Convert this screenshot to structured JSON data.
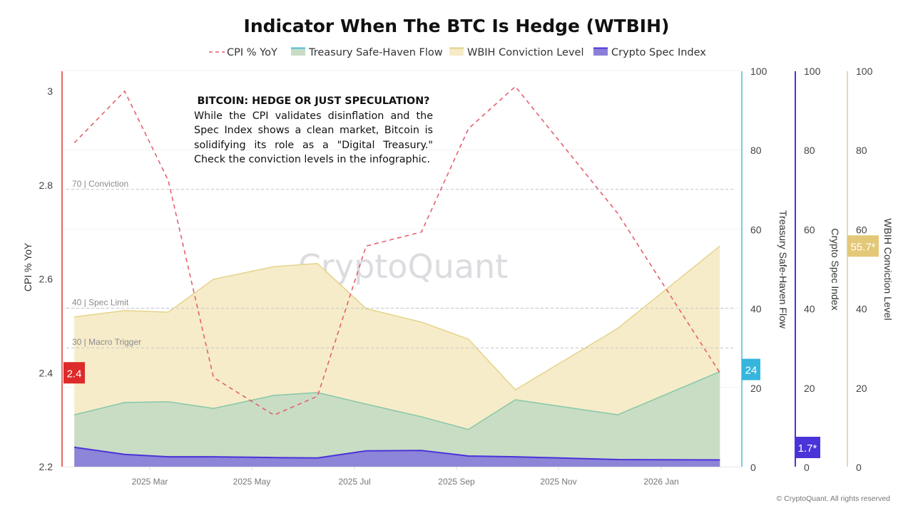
{
  "chart_data": {
    "type": "area",
    "title": "Indicator When The BTC Is Hedge (WTBIH)",
    "x": [
      "2025-01-15",
      "2025-02-14",
      "2025-03-12",
      "2025-04-08",
      "2025-05-14",
      "2025-06-09",
      "2025-07-08",
      "2025-08-10",
      "2025-09-07",
      "2025-10-05",
      "2025-12-05",
      "2026-02-04"
    ],
    "x_tick_labels": [
      "2025 Mar",
      "2025 May",
      "2025 Jul",
      "2025 Sep",
      "2025 Nov",
      "2026 Jan"
    ],
    "series": [
      {
        "name": "CPI % YoY",
        "style": "dashed-line",
        "axis": "left",
        "color": "#e4606f",
        "values": [
          2.89,
          3.0,
          2.81,
          2.39,
          2.31,
          2.35,
          2.67,
          2.7,
          2.92,
          3.01,
          2.74,
          2.4
        ],
        "last_label": "2.4",
        "label_color": "#dd2a2a"
      },
      {
        "name": "Treasury Safe-Haven Flow",
        "style": "area",
        "axis": "right1",
        "color": "#4bbcd8",
        "fill": "#c6dcc4",
        "stroke": "#86c7a8",
        "values": [
          13.1,
          16.2,
          16.4,
          14.7,
          18.0,
          18.7,
          15.8,
          12.6,
          9.4,
          16.9,
          13.1,
          24
        ],
        "last_label": "24"
      },
      {
        "name": "WBIH Conviction Level",
        "style": "area",
        "axis": "right3",
        "color": "#e3cf87",
        "fill": "#f5ebc6",
        "stroke": "#e6d38a",
        "values": [
          37.8,
          39.4,
          39.0,
          47.3,
          50.5,
          51.3,
          39.9,
          36.5,
          32.2,
          19.4,
          34.9,
          55.7
        ],
        "last_label": "55.7*"
      },
      {
        "name": "Crypto Spec Index",
        "style": "area",
        "axis": "right2",
        "color": "#4a33d9",
        "fill": "#8a80d8",
        "stroke": "#4a33d9",
        "values": [
          4.9,
          3.1,
          2.5,
          2.5,
          2.3,
          2.2,
          4.0,
          4.1,
          2.7,
          2.5,
          1.8,
          1.7
        ],
        "last_label": "1.7*"
      }
    ],
    "axes": {
      "left": {
        "label": "CPI % YoY",
        "range": [
          2.2,
          3.05
        ],
        "ticks": [
          "2.2",
          "2.4",
          "2.6",
          "2.8",
          "3"
        ],
        "color": "#e03535"
      },
      "right1": {
        "label": "Treasury Safe-Haven Flow",
        "range": [
          0,
          100
        ],
        "ticks": [
          "0",
          "20",
          "40",
          "60",
          "80",
          "100"
        ],
        "color": "#4bbcd8"
      },
      "right2": {
        "label": "Crypto Spec Index",
        "range": [
          0,
          100
        ],
        "ticks": [
          "0",
          "20",
          "40",
          "60",
          "80",
          "100"
        ],
        "color": "#4a33d9"
      },
      "right3": {
        "label": "WBIH Conviction Level",
        "range": [
          0,
          100
        ],
        "ticks": [
          "0",
          "20",
          "40",
          "60",
          "80",
          "100"
        ],
        "color": "#e3cf87"
      }
    },
    "reference_lines": [
      {
        "value": 70,
        "label": "70 | Conviction"
      },
      {
        "value": 40,
        "label": "40 | Spec Limit"
      },
      {
        "value": 30,
        "label": "30 | Macro Trigger"
      }
    ],
    "legend_position": "top",
    "grid": true
  },
  "annotation": {
    "title": "BITCOIN: HEDGE OR JUST SPECULATION?",
    "body": "While the CPI validates disinflation and the Spec Index shows a clean market, Bitcoin is solidifying its role as a \"Digital Treasury.\" Check the conviction levels in the infographic."
  },
  "watermark": "CryptoQuant",
  "footer": "© CryptoQuant. All rights reserved"
}
